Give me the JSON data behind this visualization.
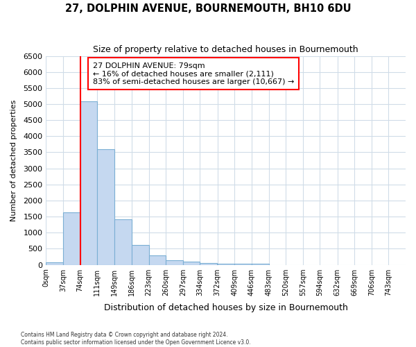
{
  "title": "27, DOLPHIN AVENUE, BOURNEMOUTH, BH10 6DU",
  "subtitle": "Size of property relative to detached houses in Bournemouth",
  "xlabel": "Distribution of detached houses by size in Bournemouth",
  "ylabel": "Number of detached properties",
  "property_size": 79,
  "bin_labels": [
    "0sqm",
    "37sqm",
    "74sqm",
    "111sqm",
    "149sqm",
    "186sqm",
    "223sqm",
    "260sqm",
    "297sqm",
    "334sqm",
    "372sqm",
    "409sqm",
    "446sqm",
    "483sqm",
    "520sqm",
    "557sqm",
    "594sqm",
    "632sqm",
    "669sqm",
    "706sqm",
    "743sqm"
  ],
  "bin_edges": [
    0,
    37,
    74,
    111,
    149,
    186,
    223,
    260,
    297,
    334,
    372,
    409,
    446,
    483,
    520,
    557,
    594,
    632,
    669,
    706,
    743
  ],
  "bar_heights": [
    70,
    1640,
    5080,
    3600,
    1410,
    620,
    300,
    135,
    90,
    55,
    40,
    35,
    30,
    0,
    0,
    0,
    0,
    0,
    0,
    0
  ],
  "bar_color": "#c5d8f0",
  "bar_edge_color": "#7bafd4",
  "red_line_x": 74,
  "annotation_title": "27 DOLPHIN AVENUE: 79sqm",
  "annotation_line1": "← 16% of detached houses are smaller (2,111)",
  "annotation_line2": "83% of semi-detached houses are larger (10,667) →",
  "ylim": [
    0,
    6500
  ],
  "yticks": [
    0,
    500,
    1000,
    1500,
    2000,
    2500,
    3000,
    3500,
    4000,
    4500,
    5000,
    5500,
    6000,
    6500
  ],
  "grid_color": "#d0dce8",
  "bg_color": "#ffffff",
  "footer1": "Contains HM Land Registry data © Crown copyright and database right 2024.",
  "footer2": "Contains public sector information licensed under the Open Government Licence v3.0."
}
